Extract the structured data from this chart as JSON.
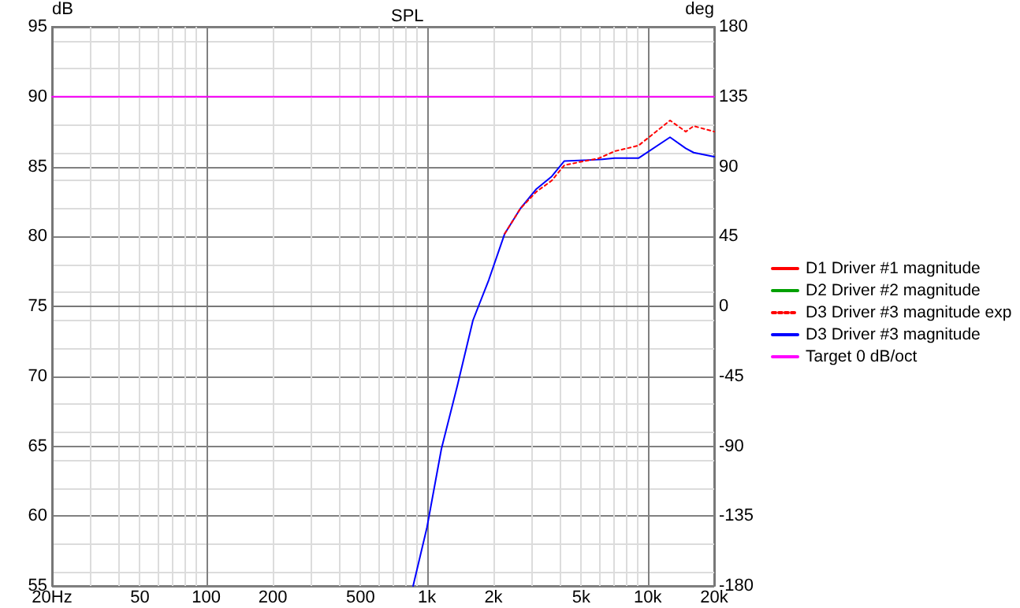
{
  "chart_data": {
    "type": "line",
    "title": "SPL",
    "ylabel": "dB",
    "y2label": "deg",
    "xlim": [
      20,
      20000
    ],
    "xticks": [
      {
        "value": 20,
        "label": "20Hz"
      },
      50,
      100,
      200,
      500,
      {
        "value": 1000,
        "label": "1k"
      },
      {
        "value": 2000,
        "label": "2k"
      },
      {
        "value": 5000,
        "label": "5k"
      },
      {
        "value": 10000,
        "label": "10k"
      },
      {
        "value": 20000,
        "label": "20k"
      }
    ],
    "ylim": [
      55,
      95
    ],
    "yticks": [
      55,
      60,
      65,
      70,
      75,
      80,
      85,
      90,
      95
    ],
    "y2lim": [
      -180,
      180
    ],
    "y2ticks": [
      -180,
      -135,
      -90,
      -45,
      0,
      45,
      90,
      135,
      180
    ],
    "log": "x",
    "grid": "xy",
    "legend": "right",
    "marker": "none",
    "x": [
      865,
      1000,
      1162,
      1371,
      1615,
      1906,
      2250,
      2650,
      3130,
      3676,
      4190,
      6020,
      7094,
      9080,
      12620,
      14870,
      16150,
      20000
    ],
    "series": [
      {
        "name": "D1 Driver #1 magnitude",
        "color": "#ff0000",
        "line_style": "solid",
        "values": [
          null,
          null,
          null,
          null,
          null,
          null,
          null,
          null,
          null,
          null,
          null,
          null,
          null,
          null,
          null,
          null,
          null,
          null
        ]
      },
      {
        "name": "D2 Driver #2 magnitude",
        "color": "#00a000",
        "line_style": "solid",
        "values": [
          null,
          null,
          null,
          null,
          null,
          null,
          null,
          null,
          null,
          null,
          null,
          null,
          null,
          null,
          null,
          null,
          null,
          null
        ]
      },
      {
        "name": "D3 Driver #3 magnitude exp",
        "color": "#ff0000",
        "line_style": "dashed",
        "values": [
          null,
          null,
          null,
          null,
          null,
          null,
          80.2,
          82,
          83.2,
          84,
          85.1,
          85.6,
          86.1,
          86.5,
          88.3,
          87.5,
          87.9,
          87.5
        ]
      },
      {
        "name": "D3 Driver #3 magnitude",
        "color": "#0000ff",
        "line_style": "solid",
        "values": [
          55,
          59.2,
          64.8,
          69.3,
          74,
          76.9,
          80.2,
          82,
          83.4,
          84.3,
          85.4,
          85.5,
          85.6,
          85.6,
          87.1,
          86.3,
          86,
          85.7
        ]
      },
      {
        "name": "Target 0 dB/oct",
        "color": "#ff00ff",
        "line_style": "solid",
        "x": [
          20,
          20000
        ],
        "values": [
          90,
          90
        ]
      }
    ]
  }
}
